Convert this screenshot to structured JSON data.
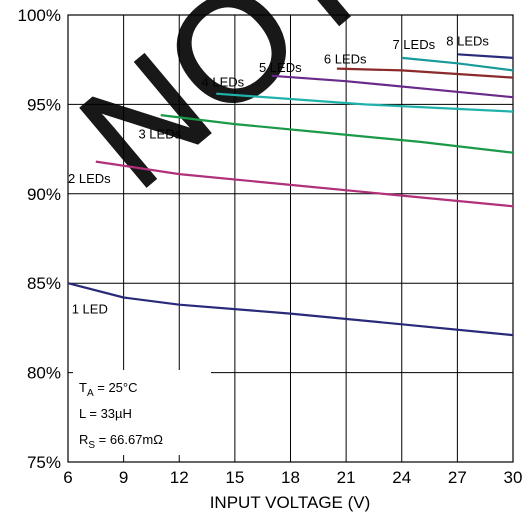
{
  "watermark": "NOT FOR",
  "chart_data": {
    "type": "line",
    "title": "",
    "xlabel": "INPUT VOLTAGE (V)",
    "ylabel": "",
    "xlim": [
      6,
      30
    ],
    "ylim": [
      75,
      100
    ],
    "x_ticks": [
      6,
      9,
      12,
      15,
      18,
      21,
      24,
      27,
      30
    ],
    "x_tick_labels": [
      "6",
      "9",
      "12",
      "15",
      "18",
      "21",
      "24",
      "27",
      "30"
    ],
    "y_ticks": [
      75,
      80,
      85,
      90,
      95,
      100
    ],
    "y_tick_labels": [
      "75%",
      "80%",
      "85%",
      "90%",
      "95%",
      "100%"
    ],
    "grid": true,
    "series": [
      {
        "name": "1 LED",
        "color": "#2a2a7a",
        "x": [
          6,
          9,
          12,
          18,
          24,
          30
        ],
        "y": [
          85.0,
          84.2,
          83.8,
          83.3,
          82.7,
          82.1
        ],
        "label_x": 6.2,
        "label_y": 83.3
      },
      {
        "name": "2 LEDs",
        "color": "#b0307a",
        "x": [
          7.5,
          12,
          18,
          24,
          30
        ],
        "y": [
          91.8,
          91.1,
          90.5,
          89.9,
          89.3
        ],
        "label_x": 6.0,
        "label_y": 90.6
      },
      {
        "name": "3 LEDs",
        "color": "#1a9a48",
        "x": [
          11,
          15,
          20,
          25,
          30
        ],
        "y": [
          94.4,
          93.9,
          93.4,
          92.9,
          92.3
        ],
        "label_x": 9.8,
        "label_y": 93.1
      },
      {
        "name": "4 LEDs",
        "color": "#20b2aa",
        "x": [
          14,
          18,
          22,
          26,
          30
        ],
        "y": [
          95.6,
          95.3,
          95.0,
          94.8,
          94.6
        ],
        "label_x": 13.2,
        "label_y": 96.0
      },
      {
        "name": "5 LEDs",
        "color": "#6a2a8a",
        "x": [
          17,
          21,
          25,
          30
        ],
        "y": [
          96.6,
          96.3,
          95.9,
          95.4
        ],
        "label_x": 16.3,
        "label_y": 96.8
      },
      {
        "name": "6 LEDs",
        "color": "#8a2a2a",
        "x": [
          20.5,
          24,
          27,
          30
        ],
        "y": [
          97.0,
          96.9,
          96.7,
          96.5
        ],
        "label_x": 19.8,
        "label_y": 97.3
      },
      {
        "name": "7 LEDs",
        "color": "#1a9a9a",
        "x": [
          24,
          27,
          30
        ],
        "y": [
          97.6,
          97.3,
          96.9
        ],
        "label_x": 23.5,
        "label_y": 98.1
      },
      {
        "name": "8 LEDs",
        "color": "#2a2a7a",
        "x": [
          27,
          30
        ],
        "y": [
          97.8,
          97.6
        ],
        "label_x": 26.4,
        "label_y": 98.3
      }
    ],
    "annotations": {
      "temperature": "T",
      "temperature_sub": "A",
      "temperature_value": " = 25°C",
      "inductance": "L = 33µH",
      "resistance": "R",
      "resistance_sub": "S",
      "resistance_value": " = 66.67mΩ"
    }
  }
}
